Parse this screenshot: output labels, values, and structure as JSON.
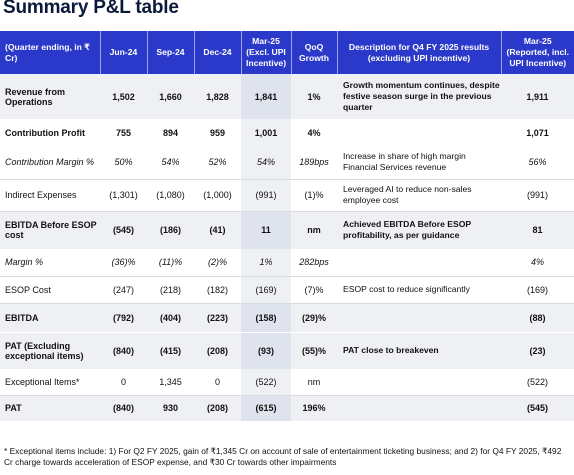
{
  "title": "Summary P&L table",
  "headers": {
    "label": "(Quarter ending, in ₹ Cr)",
    "jun24": "Jun-24",
    "sep24": "Sep-24",
    "dec24": "Dec-24",
    "mar25": "Mar-25 (Excl. UPI Incentive)",
    "qoq": "QoQ Growth",
    "desc": "Description for Q4 FY 2025 results (excluding UPI incentive)",
    "mar25r": "Mar-25 (Reported, incl. UPI Incentive)"
  },
  "rows": [
    {
      "label": "Revenue from Operations",
      "jun24": "1,502",
      "sep24": "1,660",
      "dec24": "1,828",
      "mar25": "1,841",
      "qoq": "1%",
      "desc": "Growth momentum continues, despite festive season surge in the previous quarter",
      "mar25r": "1,911"
    },
    {
      "label": "Contribution Profit",
      "jun24": "755",
      "sep24": "894",
      "dec24": "959",
      "mar25": "1,001",
      "qoq": "4%",
      "desc": "",
      "mar25r": "1,071"
    },
    {
      "label": "Contribution Margin %",
      "jun24": "50%",
      "sep24": "54%",
      "dec24": "52%",
      "mar25": "54%",
      "qoq": "189bps",
      "desc": "Increase in share of high margin Financial Services revenue",
      "mar25r": "56%"
    },
    {
      "label": "Indirect Expenses",
      "jun24": "(1,301)",
      "sep24": "(1,080)",
      "dec24": "(1,000)",
      "mar25": "(991)",
      "qoq": "(1)%",
      "desc": "Leveraged AI to reduce non-sales employee cost",
      "mar25r": "(991)"
    },
    {
      "label": "EBITDA Before ESOP cost",
      "jun24": "(545)",
      "sep24": "(186)",
      "dec24": "(41)",
      "mar25": "11",
      "qoq": "nm",
      "desc": "Achieved EBITDA Before ESOP profitability, as per guidance",
      "mar25r": "81"
    },
    {
      "label": "Margin %",
      "jun24": "(36)%",
      "sep24": "(11)%",
      "dec24": "(2)%",
      "mar25": "1%",
      "qoq": "282bps",
      "desc": "",
      "mar25r": "4%"
    },
    {
      "label": "ESOP Cost",
      "jun24": "(247)",
      "sep24": "(218)",
      "dec24": "(182)",
      "mar25": "(169)",
      "qoq": "(7)%",
      "desc": "ESOP cost to reduce significantly",
      "mar25r": "(169)"
    },
    {
      "label": "EBITDA",
      "jun24": "(792)",
      "sep24": "(404)",
      "dec24": "(223)",
      "mar25": "(158)",
      "qoq": "(29)%",
      "desc": "",
      "mar25r": "(88)"
    },
    {
      "label": "PAT (Excluding exceptional items)",
      "jun24": "(840)",
      "sep24": "(415)",
      "dec24": "(208)",
      "mar25": "(93)",
      "qoq": "(55)%",
      "desc": "PAT close to breakeven",
      "mar25r": "(23)"
    },
    {
      "label": "Exceptional Items*",
      "jun24": "0",
      "sep24": "1,345",
      "dec24": "0",
      "mar25": "(522)",
      "qoq": "nm",
      "desc": "",
      "mar25r": "(522)"
    },
    {
      "label": "PAT",
      "jun24": "(840)",
      "sep24": "930",
      "dec24": "(208)",
      "mar25": "(615)",
      "qoq": "196%",
      "desc": "",
      "mar25r": "(545)"
    }
  ],
  "footnote": "* Exceptional items include: 1) For Q2 FY 2025, gain of ₹1,345 Cr on account of sale of entertainment ticketing business; and 2) for Q4 FY 2025, ₹492 Cr charge towards acceleration of ESOP expense, and ₹30 Cr towards other impairments"
}
